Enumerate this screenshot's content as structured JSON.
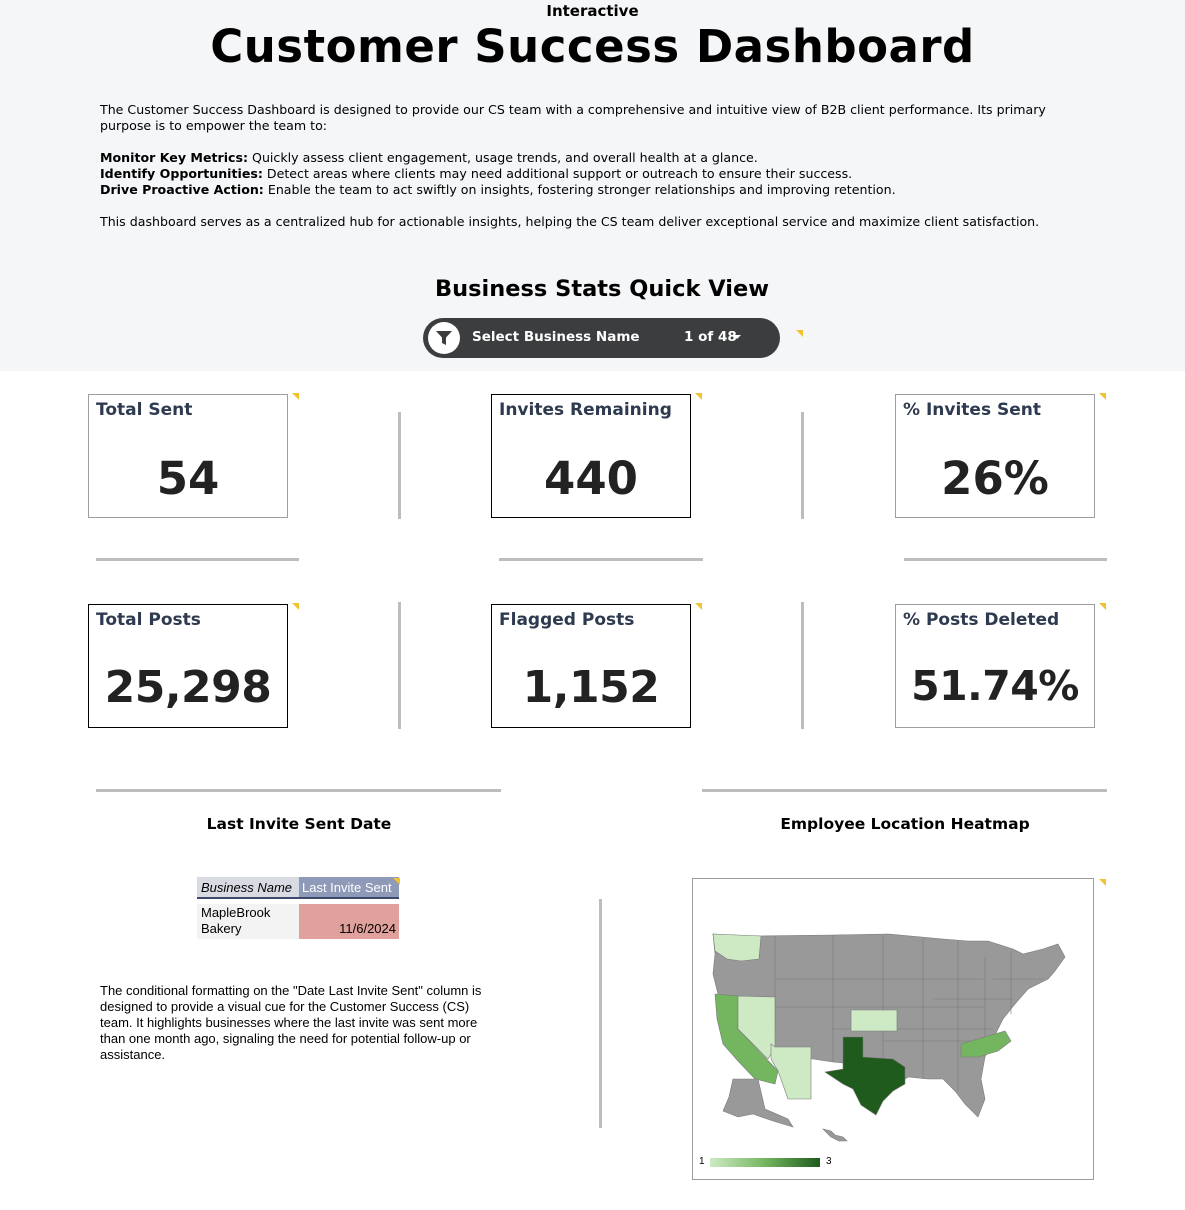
{
  "header": {
    "kicker": "Interactive",
    "title": "Customer Success Dashboard",
    "intro_p1": "The Customer Success Dashboard is designed to provide our CS team with a comprehensive and intuitive view of B2B client performance. Its primary purpose is to empower the team to:",
    "bullets": [
      {
        "label": "Monitor Key Metrics:",
        "text": " Quickly assess client engagement, usage trends, and overall health at a glance."
      },
      {
        "label": "Identify Opportunities:",
        "text": " Detect areas where clients may need additional support or outreach to ensure their success."
      },
      {
        "label": "Drive Proactive Action:",
        "text": " Enable the team to act swiftly on insights, fostering stronger relationships and improving retention."
      }
    ],
    "intro_p2": "This dashboard serves as a centralized hub for actionable insights, helping the CS team deliver exceptional service and maximize client satisfaction."
  },
  "quick_view": {
    "title": "Business Stats Quick View",
    "filter": {
      "label": "Select Business Name",
      "count": "1 of 48",
      "icon": "filter-icon"
    }
  },
  "metrics": [
    {
      "label": "Total Sent",
      "value": "54"
    },
    {
      "label": "Invites Remaining",
      "value": "440"
    },
    {
      "label": "% Invites Sent",
      "value": "26%"
    },
    {
      "label": "Total Posts",
      "value": "25,298"
    },
    {
      "label": "Flagged Posts",
      "value": "1,152"
    },
    {
      "label": "% Posts Deleted",
      "value": "51.74%"
    }
  ],
  "last_invite": {
    "title": "Last Invite Sent Date",
    "columns": [
      "Business Name",
      "Last Invite Sent"
    ],
    "rows": [
      [
        "MapleBrook Bakery",
        "11/6/2024"
      ]
    ],
    "highlight_color": "#e0a09c",
    "note": "The conditional formatting on the \"Date Last Invite Sent\" column is designed to provide a visual cue for the Customer Success (CS) team. It highlights businesses where the last invite was sent more than one month ago, signaling the need for potential follow-up or assistance."
  },
  "heatmap": {
    "title": "Employee Location Heatmap",
    "legend_min": "1",
    "legend_max": "3",
    "no_data_color": "#999999",
    "scale_colors": [
      "#cdeac4",
      "#74b65f",
      "#1f5b1d"
    ],
    "states": [
      {
        "state": "Washington",
        "value": 1
      },
      {
        "state": "Nevada",
        "value": 1
      },
      {
        "state": "Arizona",
        "value": 1
      },
      {
        "state": "Kansas",
        "value": 1
      },
      {
        "state": "California",
        "value": 2
      },
      {
        "state": "North Carolina",
        "value": 2
      },
      {
        "state": "Texas",
        "value": 3
      }
    ]
  }
}
